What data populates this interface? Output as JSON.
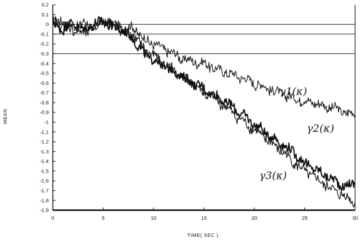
{
  "chart_data": {
    "type": "line",
    "title": "",
    "xlabel": "TIME( SEC )",
    "ylabel": "MEAN",
    "xlim": [
      0,
      30
    ],
    "ylim": [
      -1.9,
      0.2
    ],
    "x_ticks": [
      0,
      5,
      10,
      15,
      20,
      25,
      30
    ],
    "x_tick_labels": [
      "0",
      "5",
      "10",
      "15",
      "20",
      "25",
      "30"
    ],
    "y_ticks": [
      0.2,
      0.1,
      0,
      -0.1,
      -0.2,
      -0.3,
      -0.4,
      -0.5,
      -0.6,
      -0.7,
      -0.8,
      -0.9,
      -1,
      -1.1,
      -1.2,
      -1.3,
      -1.4,
      -1.5,
      -1.6,
      -1.7,
      -1.8,
      -1.9
    ],
    "y_tick_labels": [
      "0.2",
      "0.1",
      "0",
      "-0.1",
      "-0.2",
      "-0.3",
      "-0.4",
      "-0.5",
      "-0.6",
      "-0.7",
      "-0.8",
      "-0.9",
      "-1",
      "-1.1",
      "-1.2",
      "-1.3",
      "-1.4",
      "-1.5",
      "-1.6",
      "-1.7",
      "-1.8",
      "-1.9"
    ],
    "reference_lines_y": [
      0,
      -0.1,
      -0.3
    ],
    "grid": false,
    "legend": "none",
    "series": [
      {
        "name": "γ1(κ)",
        "label_at": [
          22.5,
          -0.72
        ],
        "x": [
          0,
          1,
          2,
          3,
          4,
          5,
          6,
          7,
          8,
          9,
          10,
          11,
          12,
          13,
          14,
          15,
          16,
          17,
          18,
          19,
          20,
          21,
          22,
          23,
          24,
          25,
          26,
          27,
          28,
          29,
          30
        ],
        "y": [
          0.02,
          0.04,
          -0.03,
          0.03,
          -0.05,
          0.02,
          0.0,
          -0.04,
          -0.03,
          -0.15,
          -0.2,
          -0.25,
          -0.3,
          -0.36,
          -0.38,
          -0.4,
          -0.45,
          -0.48,
          -0.52,
          -0.55,
          -0.6,
          -0.64,
          -0.68,
          -0.72,
          -0.76,
          -0.78,
          -0.8,
          -0.84,
          -0.86,
          -0.9,
          -0.92
        ]
      },
      {
        "name": "γ2(κ)",
        "label_at": [
          25.2,
          -1.1
        ],
        "x": [
          0,
          1,
          2,
          3,
          4,
          5,
          6,
          7,
          8,
          9,
          10,
          11,
          12,
          13,
          14,
          15,
          16,
          17,
          18,
          19,
          20,
          21,
          22,
          23,
          24,
          25,
          26,
          27,
          28,
          29,
          30
        ],
        "y": [
          0.0,
          -0.05,
          0.02,
          -0.06,
          0.0,
          0.03,
          -0.03,
          -0.06,
          -0.15,
          -0.3,
          -0.36,
          -0.42,
          -0.48,
          -0.55,
          -0.6,
          -0.66,
          -0.72,
          -0.78,
          -0.86,
          -0.94,
          -1.02,
          -1.1,
          -1.17,
          -1.24,
          -1.32,
          -1.42,
          -1.48,
          -1.54,
          -1.6,
          -1.66,
          -1.62
        ]
      },
      {
        "name": "γ3(κ)",
        "label_at": [
          20.5,
          -1.58
        ],
        "x": [
          0,
          1,
          2,
          3,
          4,
          5,
          6,
          7,
          8,
          9,
          10,
          11,
          12,
          13,
          14,
          15,
          16,
          17,
          18,
          19,
          20,
          21,
          22,
          23,
          24,
          25,
          26,
          27,
          28,
          29,
          30
        ],
        "y": [
          0.03,
          0.0,
          -0.05,
          -0.1,
          -0.03,
          0.05,
          0.0,
          -0.1,
          -0.12,
          -0.24,
          -0.32,
          -0.4,
          -0.47,
          -0.54,
          -0.62,
          -0.7,
          -0.76,
          -0.83,
          -0.92,
          -1.0,
          -1.08,
          -1.16,
          -1.24,
          -1.32,
          -1.42,
          -1.5,
          -1.57,
          -1.64,
          -1.7,
          -1.76,
          -1.82
        ]
      }
    ]
  }
}
